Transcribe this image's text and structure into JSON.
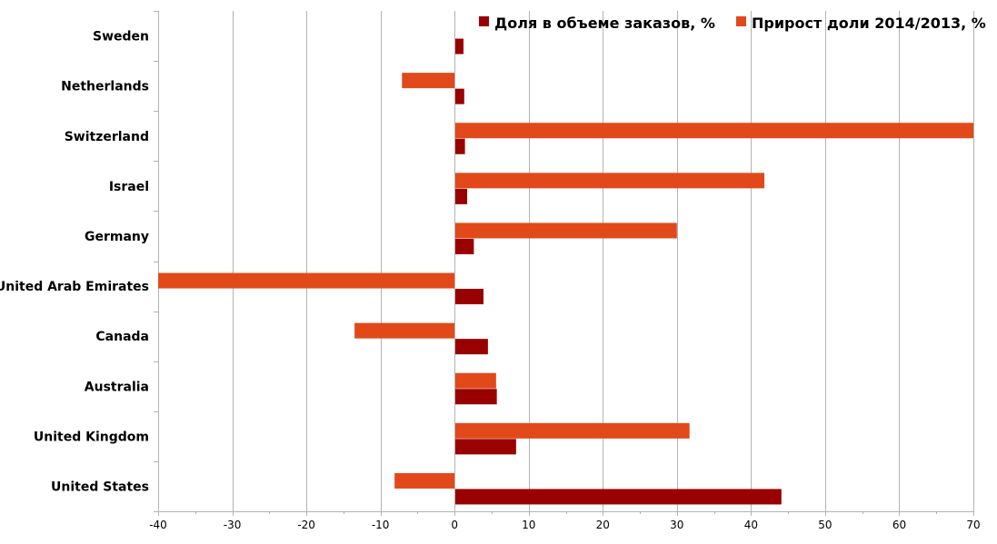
{
  "chart_data": {
    "type": "bar",
    "orientation": "horizontal",
    "categories": [
      "Sweden",
      "Netherlands",
      "Switzerland",
      "Israel",
      "Germany",
      "United Arab Emirates",
      "Canada",
      "Australia",
      "United Kingdom",
      "United States"
    ],
    "series": [
      {
        "name": "Доля в объеме заказов, %",
        "color": "#990000",
        "values": [
          1.2,
          1.3,
          1.4,
          1.7,
          2.6,
          3.9,
          4.5,
          5.7,
          8.3,
          44.1
        ]
      },
      {
        "name": "Прирост доли 2014/2013, %",
        "color": "#e2491a",
        "values": [
          null,
          -7.1,
          70.0,
          41.8,
          30.0,
          -40.0,
          -13.5,
          5.6,
          31.7,
          -8.1
        ]
      }
    ],
    "xlim": [
      -40,
      70
    ],
    "xticks": [
      -40,
      -30,
      -20,
      -10,
      0,
      10,
      20,
      30,
      40,
      50,
      60,
      70
    ],
    "grid": true,
    "legend_position": "top-right",
    "title": "",
    "xlabel": "",
    "ylabel": ""
  }
}
